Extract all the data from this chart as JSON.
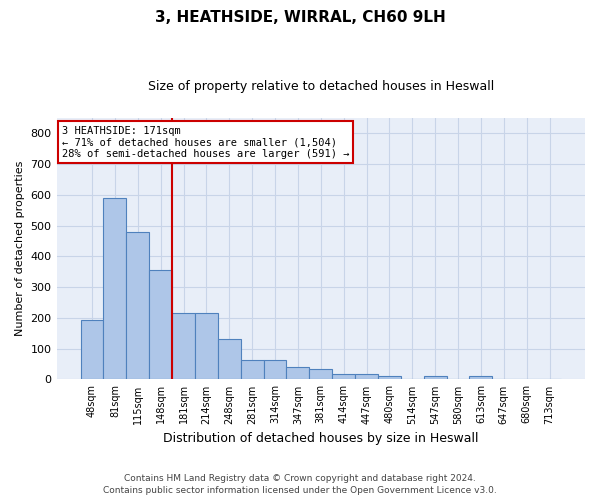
{
  "title_line1": "3, HEATHSIDE, WIRRAL, CH60 9LH",
  "title_line2": "Size of property relative to detached houses in Heswall",
  "xlabel": "Distribution of detached houses by size in Heswall",
  "ylabel": "Number of detached properties",
  "bar_labels": [
    "48sqm",
    "81sqm",
    "115sqm",
    "148sqm",
    "181sqm",
    "214sqm",
    "248sqm",
    "281sqm",
    "314sqm",
    "347sqm",
    "381sqm",
    "414sqm",
    "447sqm",
    "480sqm",
    "514sqm",
    "547sqm",
    "580sqm",
    "613sqm",
    "647sqm",
    "680sqm",
    "713sqm"
  ],
  "bar_values": [
    192,
    588,
    480,
    355,
    215,
    215,
    130,
    62,
    62,
    40,
    33,
    17,
    17,
    10,
    0,
    10,
    0,
    10,
    0,
    0,
    0
  ],
  "bar_color": "#aec6e8",
  "bar_edgecolor": "#4f81bd",
  "annotation_text": "3 HEATHSIDE: 171sqm\n← 71% of detached houses are smaller (1,504)\n28% of semi-detached houses are larger (591) →",
  "annotation_box_edgecolor": "#cc0000",
  "annotation_line_color": "#cc0000",
  "ylim": [
    0,
    850
  ],
  "yticks": [
    0,
    100,
    200,
    300,
    400,
    500,
    600,
    700,
    800
  ],
  "grid_color": "#c8d4e8",
  "background_color": "#e8eef8",
  "footer_line1": "Contains HM Land Registry data © Crown copyright and database right 2024.",
  "footer_line2": "Contains public sector information licensed under the Open Government Licence v3.0.",
  "line_x_index": 3.5
}
